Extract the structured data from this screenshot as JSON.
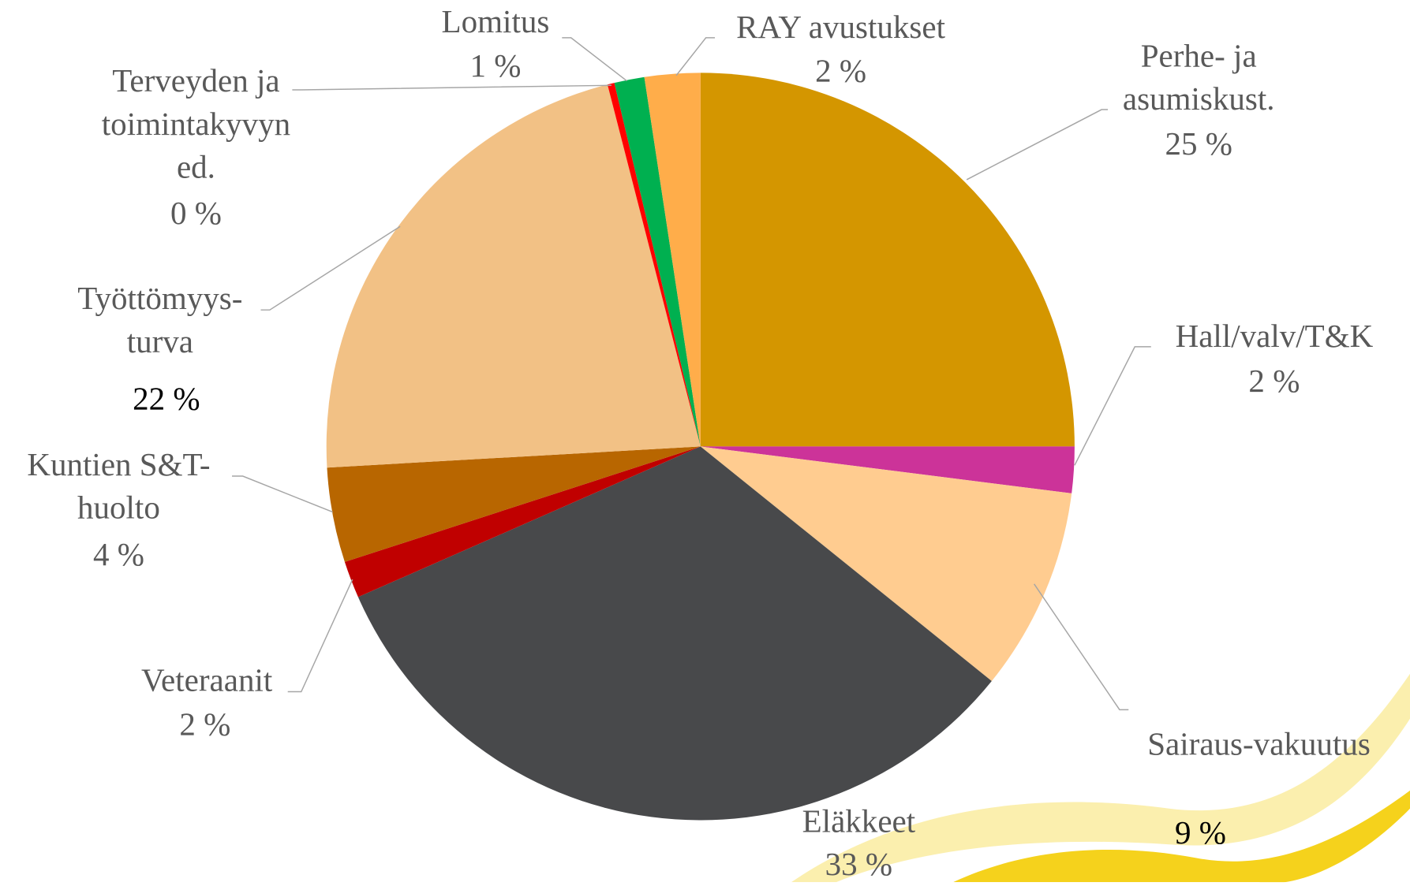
{
  "chart_data": {
    "type": "pie",
    "categories": [
      "Perhe- ja asumiskust.",
      "Hall/valv/T&K",
      "Sairaus-vakuutus",
      "Eläkkeet",
      "Veteraanit",
      "Kuntien S&T-huolto",
      "Työttömyys-turva",
      "Terveyden ja toimintakyvyn ed.",
      "Lomitus",
      "RAY avustukset"
    ],
    "values": [
      25,
      2,
      8.8,
      32.6,
      1.6,
      4.1,
      21.9,
      0.3,
      1.3,
      2.4
    ],
    "value_labels": [
      "25 %",
      "2 %",
      "9 %",
      "33 %",
      "2 %",
      "4 %",
      "22 %",
      "0 %",
      "1 %",
      "2 %"
    ],
    "colors": [
      "#D49600",
      "#CC3399",
      "#FFCC90",
      "#48494B",
      "#C00000",
      "#B86600",
      "#F2C185",
      "#FF0000",
      "#00B050",
      "#FFAD4A"
    ]
  }
}
